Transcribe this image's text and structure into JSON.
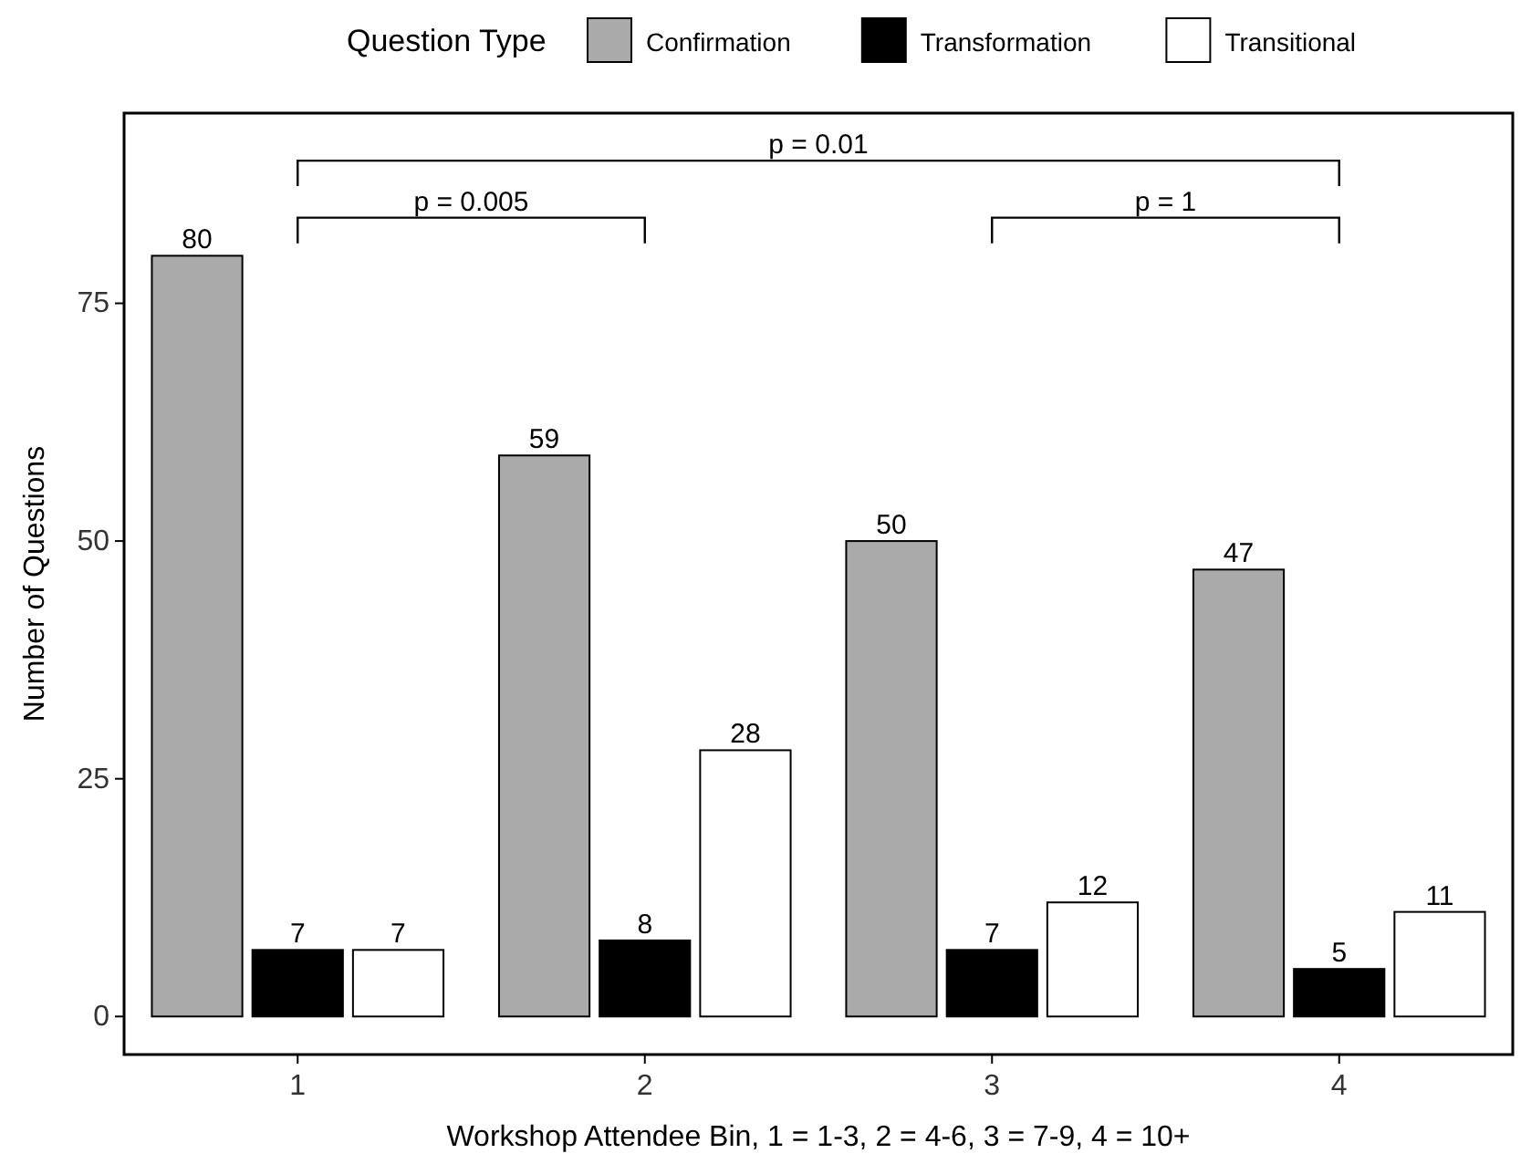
{
  "chart_data": {
    "type": "bar",
    "xlabel": "Workshop Attendee Bin, 1 = 1-3, 2 = 4-6, 3 = 7-9, 4 = 10+",
    "ylabel": "Number of Questions",
    "legend_title": "Question Type",
    "legend": "top",
    "categories": [
      "1",
      "2",
      "3",
      "4"
    ],
    "series": [
      {
        "name": "Confirmation",
        "color": "#aaaaaa",
        "values": [
          80,
          59,
          50,
          47
        ]
      },
      {
        "name": "Transformation",
        "color": "#000000",
        "values": [
          7,
          8,
          7,
          5
        ]
      },
      {
        "name": "Transitional",
        "color": "#ffffff",
        "values": [
          7,
          28,
          12,
          11
        ]
      }
    ],
    "ylim": [
      -4,
      95
    ],
    "yticks": [
      0,
      25,
      50,
      75
    ],
    "grid": false,
    "data_labels": true,
    "annotations": [
      "p = 0.01",
      "p = 0.005",
      "p = 1"
    ]
  }
}
